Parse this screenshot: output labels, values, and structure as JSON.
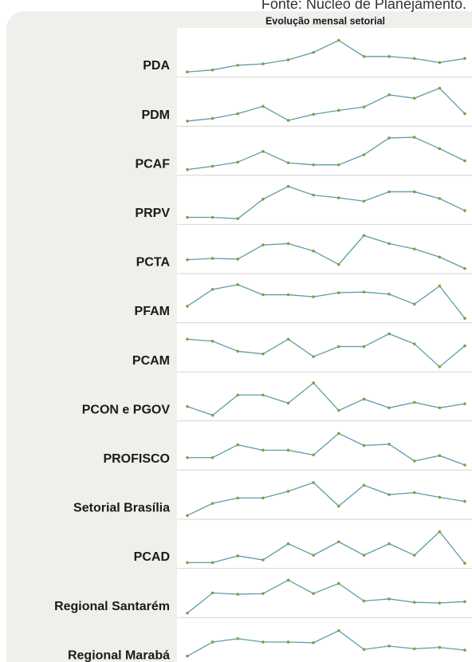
{
  "source": "Fonte: Núcleo de Planejamento.",
  "header": "Evolução mensal setorial",
  "chart_data": [
    {
      "type": "line",
      "title": "PDA",
      "values": [
        4,
        7,
        14,
        16,
        22,
        33,
        51,
        27,
        27,
        24,
        18,
        24
      ],
      "ylim": [
        0,
        60
      ],
      "color": "#5b9ea6",
      "marker_color": "#8c9a3c"
    },
    {
      "type": "line",
      "title": "PDM",
      "values": [
        4,
        8,
        15,
        26,
        5,
        14,
        20,
        25,
        43,
        38,
        53,
        15
      ],
      "ylim": [
        0,
        60
      ],
      "color": "#5b9ea6",
      "marker_color": "#8c9a3c"
    },
    {
      "type": "line",
      "title": "PCAF",
      "values": [
        5,
        10,
        16,
        32,
        15,
        12,
        12,
        27,
        52,
        53,
        36,
        18
      ],
      "ylim": [
        0,
        60
      ],
      "color": "#5b9ea6",
      "marker_color": "#8c9a3c"
    },
    {
      "type": "line",
      "title": "PRPV",
      "values": [
        7,
        7,
        5,
        34,
        53,
        40,
        36,
        31,
        45,
        45,
        35,
        17
      ],
      "ylim": [
        0,
        60
      ],
      "color": "#5b9ea6",
      "marker_color": "#8c9a3c"
    },
    {
      "type": "line",
      "title": "PCTA",
      "values": [
        17,
        19,
        18,
        39,
        41,
        30,
        10,
        53,
        41,
        33,
        21,
        4
      ],
      "ylim": [
        0,
        60
      ],
      "color": "#5b9ea6",
      "marker_color": "#8c9a3c"
    },
    {
      "type": "line",
      "title": "PFAM",
      "values": [
        21,
        46,
        53,
        38,
        38,
        35,
        41,
        42,
        39,
        24,
        51,
        3
      ],
      "ylim": [
        0,
        60
      ],
      "color": "#5b9ea6",
      "marker_color": "#8c9a3c"
    },
    {
      "type": "line",
      "title": "PCAM",
      "values": [
        45,
        42,
        27,
        23,
        45,
        19,
        34,
        34,
        53,
        38,
        4,
        35
      ],
      "ylim": [
        0,
        60
      ],
      "color": "#5b9ea6",
      "marker_color": "#8c9a3c"
    },
    {
      "type": "line",
      "title": "PCON e PGOV",
      "values": [
        18,
        5,
        35,
        35,
        23,
        53,
        12,
        29,
        16,
        24,
        16,
        22
      ],
      "ylim": [
        0,
        60
      ],
      "color": "#5b9ea6",
      "marker_color": "#8c9a3c"
    },
    {
      "type": "line",
      "title": "PROFISCO",
      "values": [
        15,
        15,
        34,
        26,
        26,
        19,
        51,
        33,
        35,
        10,
        18,
        4
      ],
      "ylim": [
        0,
        60
      ],
      "color": "#5b9ea6",
      "marker_color": "#8c9a3c"
    },
    {
      "type": "line",
      "title": "Setorial Brasília",
      "values": [
        2,
        20,
        28,
        28,
        38,
        51,
        16,
        47,
        33,
        36,
        29,
        23
      ],
      "ylim": [
        0,
        60
      ],
      "color": "#5b9ea6",
      "marker_color": "#8c9a3c"
    },
    {
      "type": "line",
      "title": "PCAD",
      "values": [
        5,
        5,
        15,
        9,
        33,
        16,
        36,
        16,
        33,
        16,
        51,
        4
      ],
      "ylim": [
        0,
        60
      ],
      "color": "#5b9ea6",
      "marker_color": "#8c9a3c"
    },
    {
      "type": "line",
      "title": "Regional Santarém",
      "values": [
        3,
        33,
        31,
        32,
        52,
        32,
        47,
        21,
        24,
        19,
        18,
        20
      ],
      "ylim": [
        0,
        60
      ],
      "color": "#5b9ea6",
      "marker_color": "#8c9a3c"
    },
    {
      "type": "line",
      "title": "Regional Marabá",
      "values": [
        12,
        33,
        38,
        33,
        33,
        32,
        50,
        22,
        27,
        23,
        25,
        21
      ],
      "ylim": [
        0,
        60
      ],
      "color": "#5b9ea6",
      "marker_color": "#8c9a3c"
    }
  ]
}
